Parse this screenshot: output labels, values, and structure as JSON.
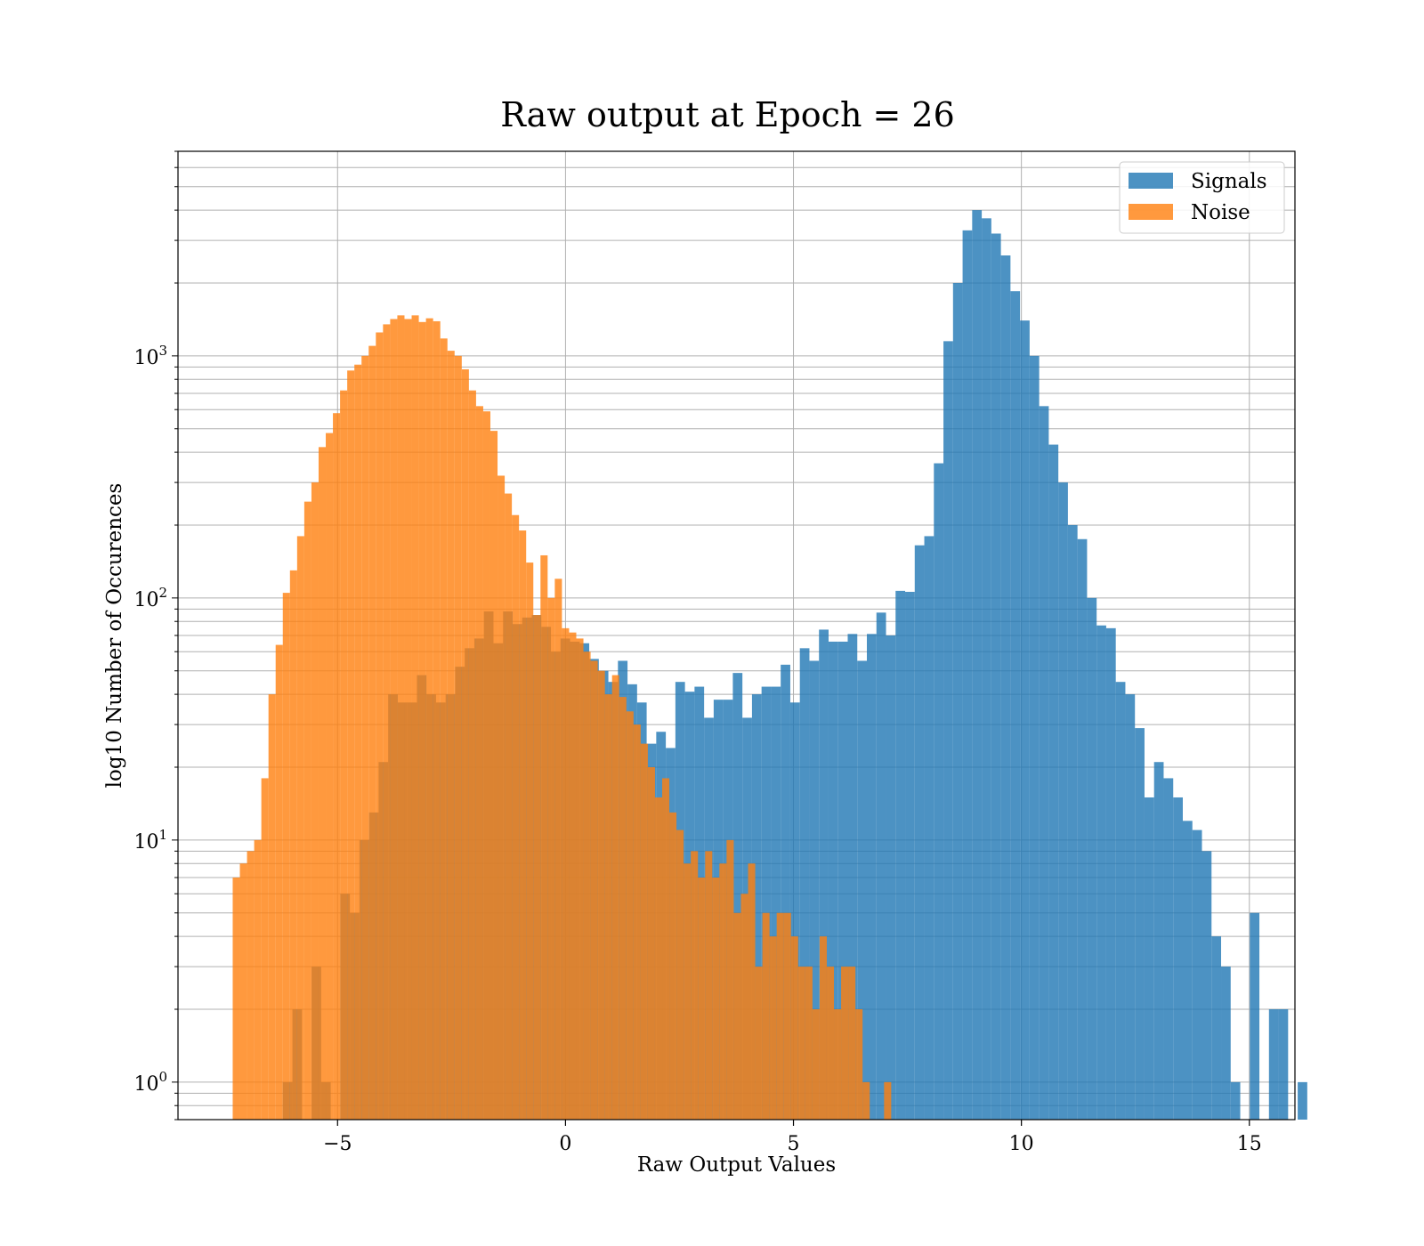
{
  "chart_data": {
    "type": "histogram",
    "title": "Raw output at Epoch = 26",
    "xlabel": "Raw Output Values",
    "ylabel": "log10 Number of Occurences",
    "xlim": [
      -8.5,
      16
    ],
    "ylim": [
      0.7,
      7000
    ],
    "yscale": "log",
    "grid": true,
    "legend_position": "top-right",
    "x_ticks": [
      -5,
      0,
      5,
      10,
      15
    ],
    "x_tick_labels": [
      "−5",
      "0",
      "5",
      "10",
      "15"
    ],
    "y_ticks": [
      1,
      10,
      100,
      1000
    ],
    "y_tick_labels": [
      {
        "base": "10",
        "exp": "0"
      },
      {
        "base": "10",
        "exp": "1"
      },
      {
        "base": "10",
        "exp": "2"
      },
      {
        "base": "10",
        "exp": "3"
      }
    ],
    "series": [
      {
        "name": "Signals",
        "color": "#1f77b4",
        "opacity": 0.8,
        "bin_start": -6.2,
        "bin_width": 0.21,
        "counts": [
          1,
          2,
          0,
          3,
          1,
          0,
          6,
          5,
          10,
          13,
          21,
          40,
          37,
          37,
          48,
          40,
          37,
          40,
          52,
          62,
          68,
          88,
          65,
          88,
          78,
          83,
          85,
          76,
          60,
          68,
          66,
          65,
          56,
          50,
          45,
          55,
          44,
          37,
          25,
          28,
          24,
          45,
          41,
          43,
          32,
          38,
          38,
          49,
          32,
          40,
          43,
          43,
          53,
          37,
          62,
          55,
          74,
          66,
          66,
          71,
          55,
          71,
          87,
          70,
          107,
          106,
          165,
          180,
          360,
          1150,
          2000,
          3300,
          4000,
          3700,
          3200,
          2600,
          1850,
          1400,
          1000,
          620,
          430,
          300,
          200,
          175,
          100,
          77,
          75,
          45,
          40,
          29,
          15,
          21,
          18,
          15,
          12,
          11,
          9,
          4,
          3,
          1,
          0,
          5,
          0,
          2,
          2,
          0,
          1
        ]
      },
      {
        "name": "Noise",
        "color": "#ff7f0e",
        "opacity": 0.8,
        "bin_start": -7.3,
        "bin_width": 0.157,
        "counts": [
          7,
          8,
          9,
          10,
          18,
          40,
          64,
          105,
          130,
          180,
          250,
          300,
          420,
          480,
          580,
          720,
          870,
          920,
          1000,
          1100,
          1250,
          1350,
          1420,
          1470,
          1420,
          1470,
          1380,
          1430,
          1390,
          1180,
          1050,
          1000,
          880,
          720,
          620,
          590,
          490,
          320,
          270,
          220,
          190,
          140,
          85,
          150,
          100,
          120,
          75,
          72,
          68,
          60,
          55,
          50,
          40,
          48,
          39,
          34,
          30,
          25,
          20,
          15,
          18,
          13,
          11,
          8,
          9,
          7,
          9,
          7,
          8,
          10,
          5,
          6,
          8,
          3,
          5,
          4,
          5,
          5,
          4,
          3,
          3,
          2,
          4,
          3,
          2,
          3,
          3,
          2,
          1,
          0,
          0,
          1,
          0,
          0
        ]
      }
    ]
  }
}
